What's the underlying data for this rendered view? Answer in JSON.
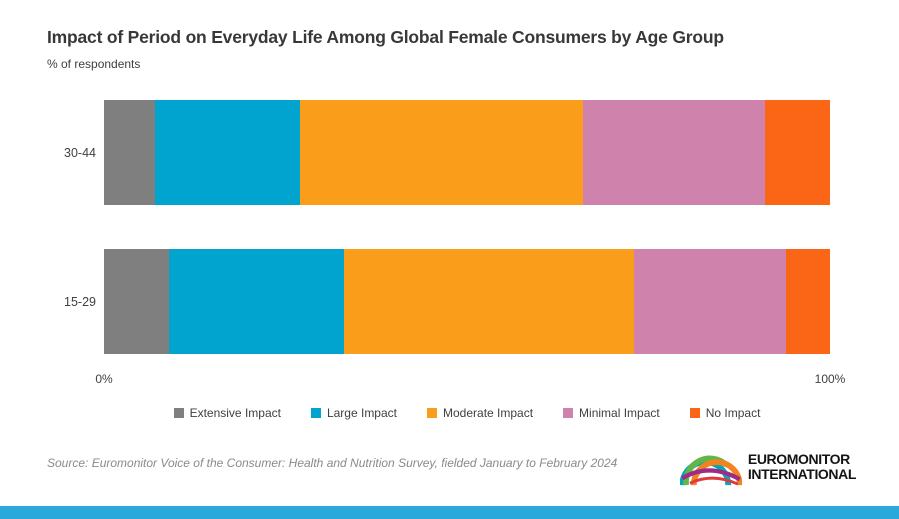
{
  "title": "Impact of Period on Everyday Life Among Global Female Consumers by Age Group",
  "subtitle": "% of respondents",
  "chart_data": {
    "type": "bar",
    "orientation": "horizontal",
    "stacked": true,
    "categories": [
      "30-44",
      "15-29"
    ],
    "series": [
      {
        "name": "Extensive Impact",
        "color": "#7f7f7f",
        "values": [
          7,
          9
        ]
      },
      {
        "name": "Large Impact",
        "color": "#00a4cf",
        "values": [
          20,
          24
        ]
      },
      {
        "name": "Moderate Impact",
        "color": "#fa9d1b",
        "values": [
          39,
          40
        ]
      },
      {
        "name": "Minimal Impact",
        "color": "#cf83ac",
        "values": [
          25,
          21
        ]
      },
      {
        "name": "No Impact",
        "color": "#fb6516",
        "values": [
          9,
          6
        ]
      }
    ],
    "xlim": [
      0,
      100
    ],
    "x_ticks": [
      "0%",
      "100%"
    ],
    "ylabel": "",
    "xlabel": "",
    "grid": false,
    "legend_position": "bottom"
  },
  "source": "Source: Euromonitor Voice of the Consumer: Health and Nutrition Survey, fielded January to February 2024",
  "logo": {
    "line1": "EUROMONITOR",
    "line2": "INTERNATIONAL"
  },
  "colors": {
    "title_text": "#383838",
    "axis_text": "#3f3f3f",
    "source_text": "#8a8a8a",
    "bottom_strip": "#29a8dc"
  }
}
